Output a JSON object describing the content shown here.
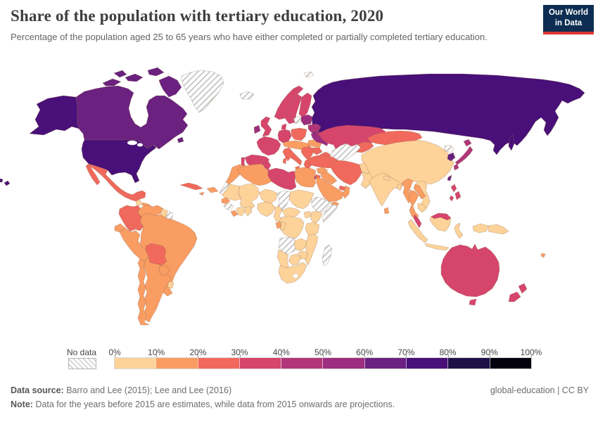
{
  "header": {
    "title": "Share of the population with tertiary education, 2020",
    "subtitle": "Percentage of the population aged 25 to 65 years who have either completed or partially completed tertiary education.",
    "logo": {
      "line1": "Our World",
      "line2": "in Data"
    }
  },
  "legend": {
    "no_data_label": "No data",
    "tick_labels": [
      "0%",
      "10%",
      "20%",
      "30%",
      "40%",
      "50%",
      "60%",
      "70%",
      "80%",
      "90%",
      "100%"
    ]
  },
  "footer": {
    "source_label": "Data source:",
    "source_text": " Barro and Lee (2015); Lee and Lee (2016)",
    "note_label": "Note:",
    "note_text": " Data for the years before 2015 are estimates, while data from 2015 onwards are projections.",
    "license": "global-education | CC BY"
  },
  "colors": {
    "logo_bg": "#0d2e52",
    "logo_accent": "#dc3832"
  },
  "chart_data": {
    "type": "choropleth-map",
    "title": "Share of the population with tertiary education, 2020",
    "unit": "% of population aged 25 to 65",
    "legend_ticks": [
      "0%",
      "10%",
      "20%",
      "30%",
      "40%",
      "50%",
      "60%",
      "70%",
      "80%",
      "90%",
      "100%"
    ],
    "bins": [
      {
        "key": "b0",
        "range": "0-10%",
        "color": "#fdd39a"
      },
      {
        "key": "b1",
        "range": "10-20%",
        "color": "#fa9d63"
      },
      {
        "key": "b2",
        "range": "20-30%",
        "color": "#f0695c"
      },
      {
        "key": "b3",
        "range": "30-40%",
        "color": "#d6456c"
      },
      {
        "key": "b4",
        "range": "40-50%",
        "color": "#b13679"
      },
      {
        "key": "b5",
        "range": "50-60%",
        "color": "#9c2e7f"
      },
      {
        "key": "b6",
        "range": "60-70%",
        "color": "#6a2180"
      },
      {
        "key": "b7",
        "range": "70-80%",
        "color": "#481078"
      },
      {
        "key": "b8",
        "range": "80-90%",
        "color": "#1f1147"
      },
      {
        "key": "b9",
        "range": "90-100%",
        "color": "#050210"
      },
      {
        "key": "nodata",
        "range": "No data",
        "color": "hatch"
      }
    ],
    "regions": {
      "usa": "b7",
      "canada": "b6",
      "greenland": "nodata",
      "mexico": "b2",
      "guatemala": "b0",
      "honduras": "b1",
      "nicaragua": "b1",
      "costa-rica-panama": "b1",
      "cuba": "b2",
      "hispaniola": "b1",
      "jamaica": "b1",
      "puerto-rico": "b1",
      "colombia": "b2",
      "venezuela": "b1",
      "guyana": "b0",
      "suriname": "nodata",
      "brazil": "b1",
      "ecuador": "b1",
      "peru": "b1",
      "bolivia": "b2",
      "paraguay": "b1",
      "chile": "b1",
      "argentina": "b1",
      "uruguay": "b0",
      "iceland": "nodata",
      "uk": "b3",
      "ireland": "b5",
      "norway": "b3",
      "sweden": "b3",
      "finland": "b3",
      "denmark": "b3",
      "france": "b3",
      "spain": "b3",
      "portugal": "b3",
      "germany": "b3",
      "poland": "b2",
      "central-europe": "b1",
      "italy": "b2",
      "balkans": "b2",
      "greece": "b2",
      "romania": "b1",
      "bulgaria": "b2",
      "baltics": "b5",
      "baltic-nodata": "nodata",
      "belarus": "b4",
      "ukraine": "b5",
      "svalbard": "nodata",
      "russia": "b7",
      "kazakhstan": "b3",
      "uzbekistan-turkmenistan": "nodata",
      "kyrgyzstan-tajikistan": "b2",
      "caucasus": "b2",
      "turkey": "b2",
      "cyprus": "b1",
      "syria": "b1",
      "iraq": "b1",
      "iran": "b2",
      "jordan": "b2",
      "israel": "b6",
      "saudi-arabia": "b1",
      "yemen": "b1",
      "oman": "b1",
      "uae": "b2",
      "afghanistan": "b0",
      "pakistan": "b0",
      "india": "b0",
      "nepal": "b0",
      "bangladesh": "b0",
      "sri-lanka": "b1",
      "china": "b0",
      "mongolia": "b2",
      "north-korea": "nodata",
      "south-korea": "b6",
      "japan": "b4",
      "taiwan": "b6",
      "myanmar": "b1",
      "thailand": "b1",
      "laos": "b1",
      "vietnam": "b0",
      "cambodia": "b0",
      "malaysia": "b3",
      "indonesia": "b0",
      "philippines": "b3",
      "papua-new-guinea": "b0",
      "fiji": "b1",
      "australia": "b3",
      "new-zealand": "b3",
      "morocco": "b1",
      "western-sahara": "nodata",
      "algeria": "b1",
      "tunisia": "b3",
      "libya": "b3",
      "egypt": "b1",
      "mauritania": "b0",
      "mali": "b0",
      "niger": "b0",
      "chad": "nodata",
      "sudan": "b0",
      "senegal": "b1",
      "guinea": "nodata",
      "liberia": "b1",
      "ivory-coast": "b0",
      "ghana": "b0",
      "nigeria": "b0",
      "cameroon": "b0",
      "central-african-republic": "b0",
      "ethiopia": "nodata",
      "somalia": "nodata",
      "kenya": "b0",
      "uganda": "b0",
      "drc": "b0",
      "gabon": "b1",
      "congo": "b0",
      "tanzania": "b0",
      "angola": "nodata",
      "zambia": "b0",
      "mozambique": "b0",
      "zimbabwe": "b0",
      "botswana": "b0",
      "namibia": "b0",
      "south-africa": "b0",
      "madagascar": "nodata"
    }
  }
}
